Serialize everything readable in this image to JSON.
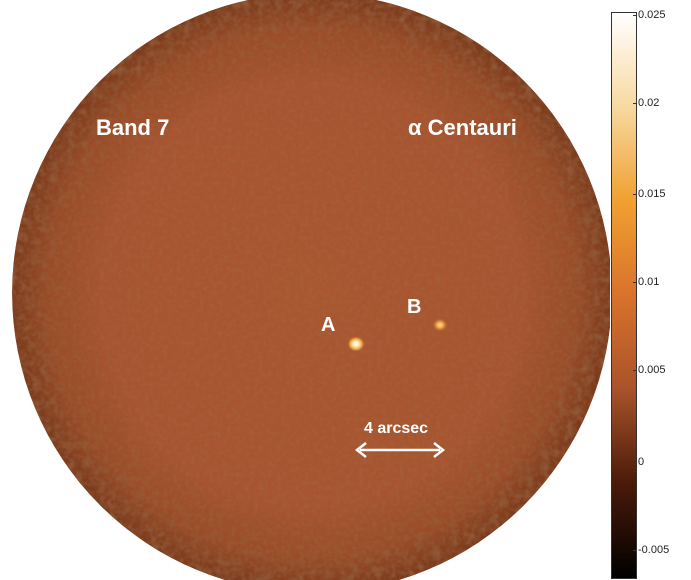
{
  "image": {
    "band_label": "Band 7",
    "target_label": "α Centauri",
    "star_a_label": "A",
    "star_b_label": "B",
    "scale_label": "4 arcsec"
  },
  "colorbar": {
    "ticks": [
      "0.025",
      "0.02",
      "0.015",
      "0.01",
      "0.005",
      "0",
      "-0.005"
    ],
    "colors": [
      "#000000",
      "#4a1a08",
      "#a8532a",
      "#d9722c",
      "#f0a030",
      "#f7d9a0",
      "#ffffff"
    ]
  },
  "colors": {
    "background_field": "#a9572f",
    "noise_dark": "#5e2a12",
    "noise_light": "#d08050",
    "label_text": "#ffffff"
  }
}
